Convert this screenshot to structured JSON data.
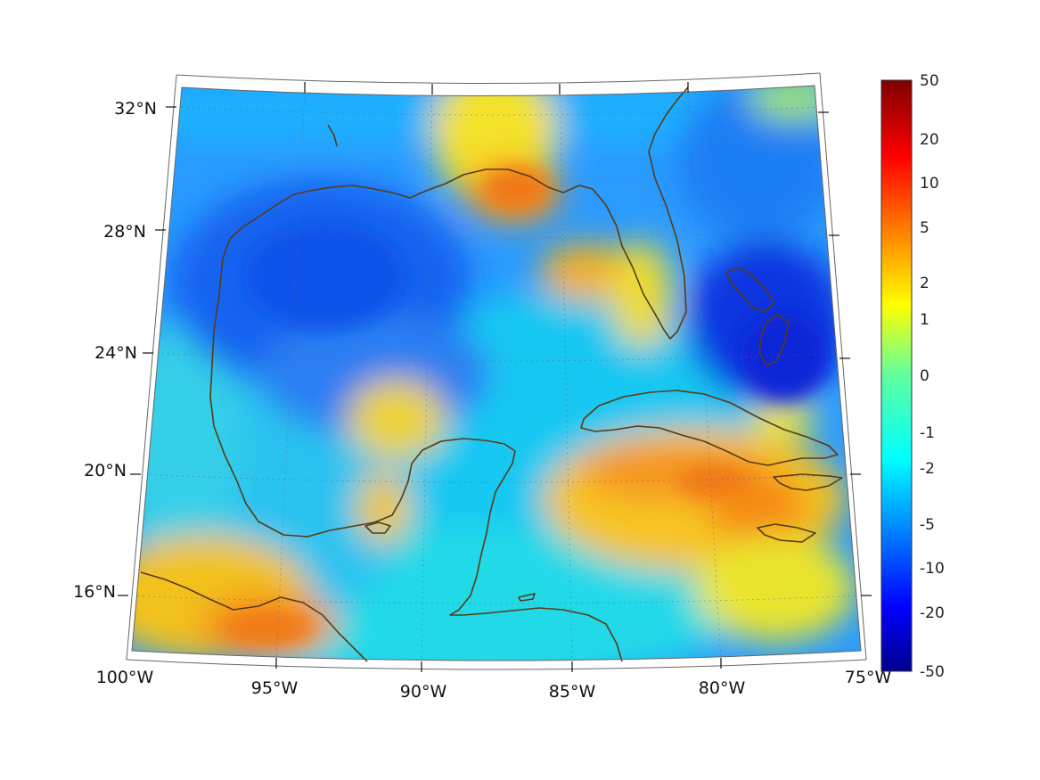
{
  "map": {
    "region": "Gulf of Mexico and Caribbean",
    "lat_labels": [
      "32°N",
      "28°N",
      "24°N",
      "20°N",
      "16°N"
    ],
    "lon_labels": [
      "100°W",
      "95°W",
      "90°W",
      "85°W",
      "80°W",
      "75°W"
    ],
    "lat_range": [
      14,
      33
    ],
    "lon_range": [
      -100,
      -75
    ],
    "coastline_color": "#5a3a14",
    "grid": "dotted"
  },
  "colorbar": {
    "labels": [
      "50",
      "20",
      "10",
      "5",
      "2",
      "1",
      "0",
      "-1",
      "-2",
      "-5",
      "-10",
      "-20",
      "-50"
    ],
    "colormap": "jet",
    "range": [
      -50,
      50
    ],
    "scale": "symmetric log"
  }
}
